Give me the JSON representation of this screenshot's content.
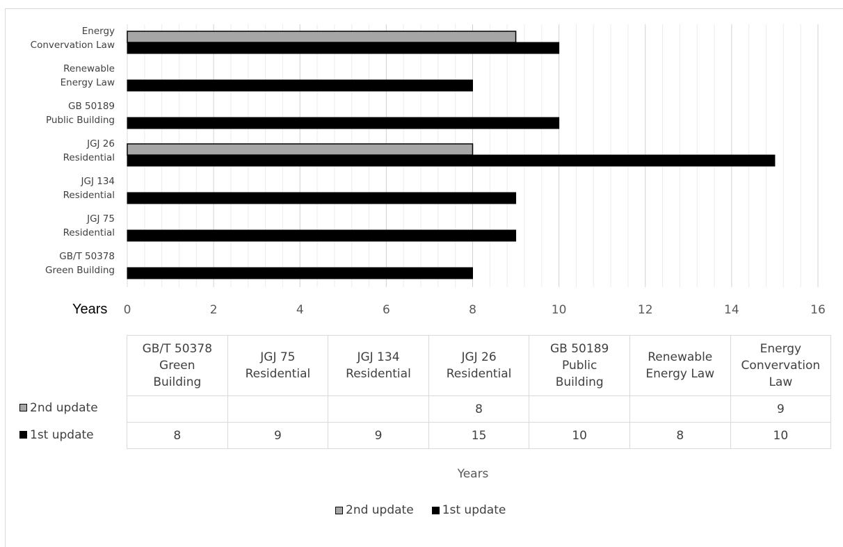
{
  "chart_data": {
    "type": "bar",
    "orientation": "horizontal",
    "categories": [
      "Energy Convervation Law",
      "Renewable Energy Law",
      "GB 50189 Public Building",
      "JGJ 26 Residential",
      "JGJ 134 Residential",
      "JGJ 75 Residential",
      "GB/T 50378 Green Building"
    ],
    "category_lines": [
      [
        "Energy",
        "Convervation Law"
      ],
      [
        "Renewable",
        "Energy Law"
      ],
      [
        "GB 50189",
        "Public Building"
      ],
      [
        "JGJ 26",
        "Residential"
      ],
      [
        "JGJ 134",
        "Residential"
      ],
      [
        "JGJ 75",
        "Residential"
      ],
      [
        "GB/T 50378",
        "Green Building"
      ]
    ],
    "series": [
      {
        "name": "2nd update",
        "color": "#a6a6a6",
        "values": [
          9,
          null,
          null,
          8,
          null,
          null,
          null
        ]
      },
      {
        "name": "1st update",
        "color": "#000000",
        "values": [
          10,
          8,
          10,
          15,
          9,
          9,
          8
        ]
      }
    ],
    "xlim": [
      0,
      16
    ],
    "x_ticks": [
      "0",
      "2",
      "4",
      "6",
      "8",
      "10",
      "12",
      "14",
      "16"
    ],
    "x_unit_label": "Years",
    "xlabel": "Years",
    "grid": "vertical",
    "legend_position": "bottom"
  },
  "data_table": {
    "columns": [
      [
        "GB/T 50378",
        "Green",
        "Building"
      ],
      [
        "JGJ 75",
        "Residential"
      ],
      [
        "JGJ 134",
        "Residential"
      ],
      [
        "JGJ 26",
        "Residential"
      ],
      [
        "GB 50189",
        "Public",
        "Building"
      ],
      [
        "Renewable",
        "Energy Law"
      ],
      [
        "Energy",
        "Convervation",
        "Law"
      ]
    ],
    "rows": [
      {
        "label": "2nd update",
        "color": "#a6a6a6",
        "values": [
          "",
          "",
          "",
          "8",
          "",
          "",
          "9"
        ]
      },
      {
        "label": "1st update",
        "color": "#000000",
        "values": [
          "8",
          "9",
          "9",
          "15",
          "10",
          "8",
          "10"
        ]
      }
    ]
  },
  "legend": [
    {
      "label": "2nd update",
      "color": "#a6a6a6"
    },
    {
      "label": "1st update",
      "color": "#000000"
    }
  ]
}
